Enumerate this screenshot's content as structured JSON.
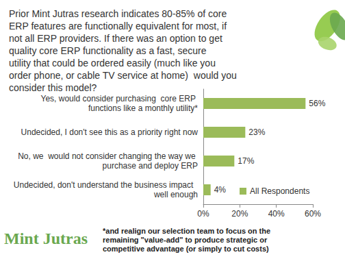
{
  "chart_data": {
    "type": "bar",
    "title": "Prior Mint Jutras research indicates 80-85% of core ERP features are functionally equivalent for most, if not all ERP providers. If there was an option to get quality core ERP functionality as a fast, secure utility that could be ordered easily (much like you order phone, or cable TV service at home)  would you consider this model?",
    "orientation": "horizontal",
    "categories": [
      "Yes, would consider purchasing  core ERP functions like a monthly utility*",
      "Undecided, I don't see this as a priority right now",
      "No, we  would not consider changing the way we purchase and deploy ERP",
      "Undecided, don't understand the business impact  well enough"
    ],
    "series": [
      {
        "name": "All Respondents",
        "color": "#9bbb59",
        "values": [
          56,
          23,
          17,
          4
        ],
        "value_labels": [
          "56%",
          "23%",
          "17%",
          "4%"
        ]
      }
    ],
    "xlim": [
      0,
      60
    ],
    "xticks": [
      {
        "value": 0,
        "label": "0%"
      },
      {
        "value": 20,
        "label": "20%"
      },
      {
        "value": 40,
        "label": "40%"
      },
      {
        "value": 60,
        "label": "60%"
      }
    ],
    "grid": false,
    "legend": "lower right",
    "data_labels": true,
    "annotations": [
      "*and realign our selection team to focus on the remaining \"value-add\" to produce strategic or competitive advantage (or simply to cut costs)",
      "Mint Jutras"
    ]
  }
}
